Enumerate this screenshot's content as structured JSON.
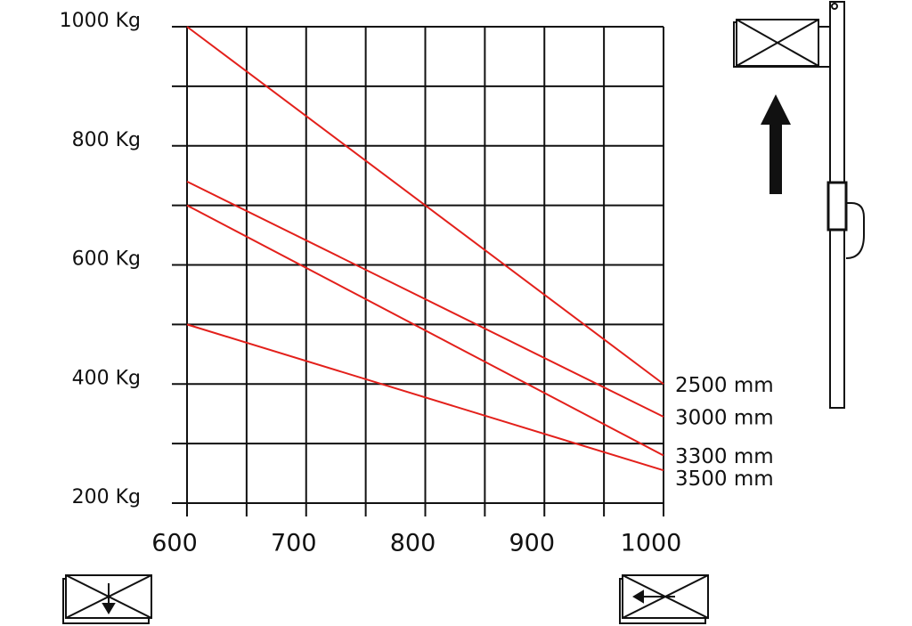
{
  "chart_data": {
    "type": "line",
    "categories_note_free": true,
    "xlim": [
      600,
      1000
    ],
    "xticks": [
      600,
      700,
      800,
      900,
      1000
    ],
    "xminorticks": [
      650,
      750,
      850,
      950
    ],
    "ylim": [
      200,
      1000
    ],
    "yticks": [
      {
        "value": 200,
        "label": "200 Kg"
      },
      {
        "value": 400,
        "label": "400 Kg"
      },
      {
        "value": 600,
        "label": "600 Kg"
      },
      {
        "value": 800,
        "label": "800 Kg"
      },
      {
        "value": 1000,
        "label": "1000 Kg"
      }
    ],
    "yminorticks": [
      300,
      500,
      700,
      900
    ],
    "grid": true,
    "x": [
      600,
      1000
    ],
    "series": [
      {
        "name": "2500 mm",
        "color": "#e3201b",
        "values": [
          1000,
          400
        ]
      },
      {
        "name": "3000 mm",
        "color": "#e3201b",
        "values": [
          740,
          345
        ]
      },
      {
        "name": "3300 mm",
        "color": "#e3201b",
        "values": [
          700,
          280
        ]
      },
      {
        "name": "3500 mm",
        "color": "#e3201b",
        "values": [
          500,
          255
        ]
      }
    ]
  }
}
